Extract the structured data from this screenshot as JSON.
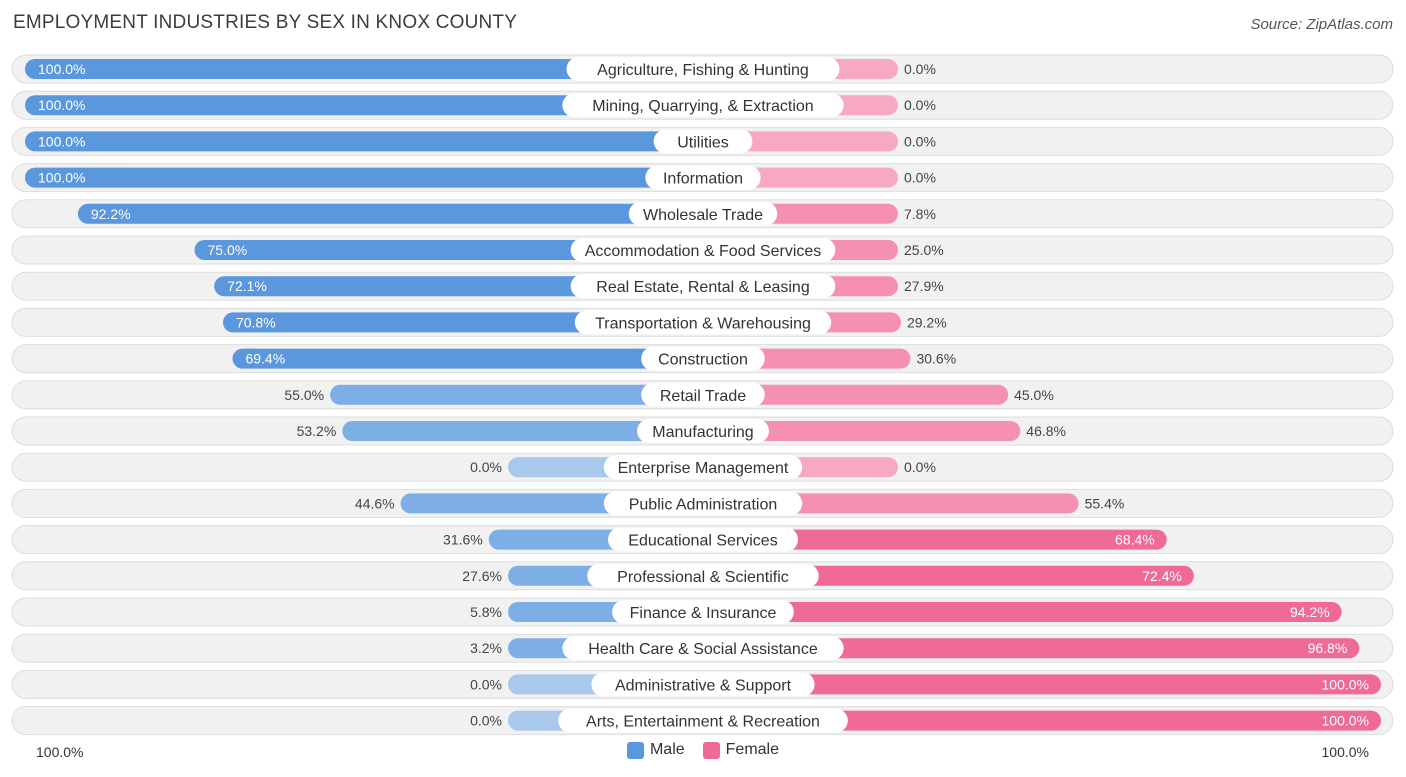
{
  "title": "EMPLOYMENT INDUSTRIES BY SEX IN KNOX COUNTY",
  "source": "Source: ZipAtlas.com",
  "colors": {
    "male_strong": "#5b97dc",
    "male_light": "#a8c8ec",
    "female_strong": "#f06a97",
    "female_light": "#f7a8c3",
    "row_bg": "#f1f1f1",
    "row_border": "#dddddd"
  },
  "legend": {
    "male": "Male",
    "female": "Female"
  },
  "axis": {
    "left_label": "100.0%",
    "right_label": "100.0%"
  },
  "chart_data": {
    "type": "bar",
    "orientation": "horizontal-diverging",
    "title": "EMPLOYMENT INDUSTRIES BY SEX IN KNOX COUNTY",
    "xlim": [
      -100,
      100
    ],
    "categories": [
      "Agriculture, Fishing & Hunting",
      "Mining, Quarrying, & Extraction",
      "Utilities",
      "Information",
      "Wholesale Trade",
      "Accommodation & Food Services",
      "Real Estate, Rental & Leasing",
      "Transportation & Warehousing",
      "Construction",
      "Retail Trade",
      "Manufacturing",
      "Enterprise Management",
      "Public Administration",
      "Educational Services",
      "Professional & Scientific",
      "Finance & Insurance",
      "Health Care & Social Assistance",
      "Administrative & Support",
      "Arts, Entertainment & Recreation"
    ],
    "series": [
      {
        "name": "Male",
        "values": [
          100.0,
          100.0,
          100.0,
          100.0,
          92.2,
          75.0,
          72.1,
          70.8,
          69.4,
          55.0,
          53.2,
          0.0,
          44.6,
          31.6,
          27.6,
          5.8,
          3.2,
          0.0,
          0.0
        ],
        "labels": [
          "100.0%",
          "100.0%",
          "100.0%",
          "100.0%",
          "92.2%",
          "75.0%",
          "72.1%",
          "70.8%",
          "69.4%",
          "55.0%",
          "53.2%",
          "0.0%",
          "44.6%",
          "31.6%",
          "27.6%",
          "5.8%",
          "3.2%",
          "0.0%",
          "0.0%"
        ]
      },
      {
        "name": "Female",
        "values": [
          0.0,
          0.0,
          0.0,
          0.0,
          7.8,
          25.0,
          27.9,
          29.2,
          30.6,
          45.0,
          46.8,
          0.0,
          55.4,
          68.4,
          72.4,
          94.2,
          96.8,
          100.0,
          100.0
        ],
        "labels": [
          "0.0%",
          "0.0%",
          "0.0%",
          "0.0%",
          "7.8%",
          "25.0%",
          "27.9%",
          "29.2%",
          "30.6%",
          "45.0%",
          "46.8%",
          "0.0%",
          "55.4%",
          "68.4%",
          "72.4%",
          "94.2%",
          "96.8%",
          "100.0%",
          "100.0%"
        ]
      }
    ]
  }
}
